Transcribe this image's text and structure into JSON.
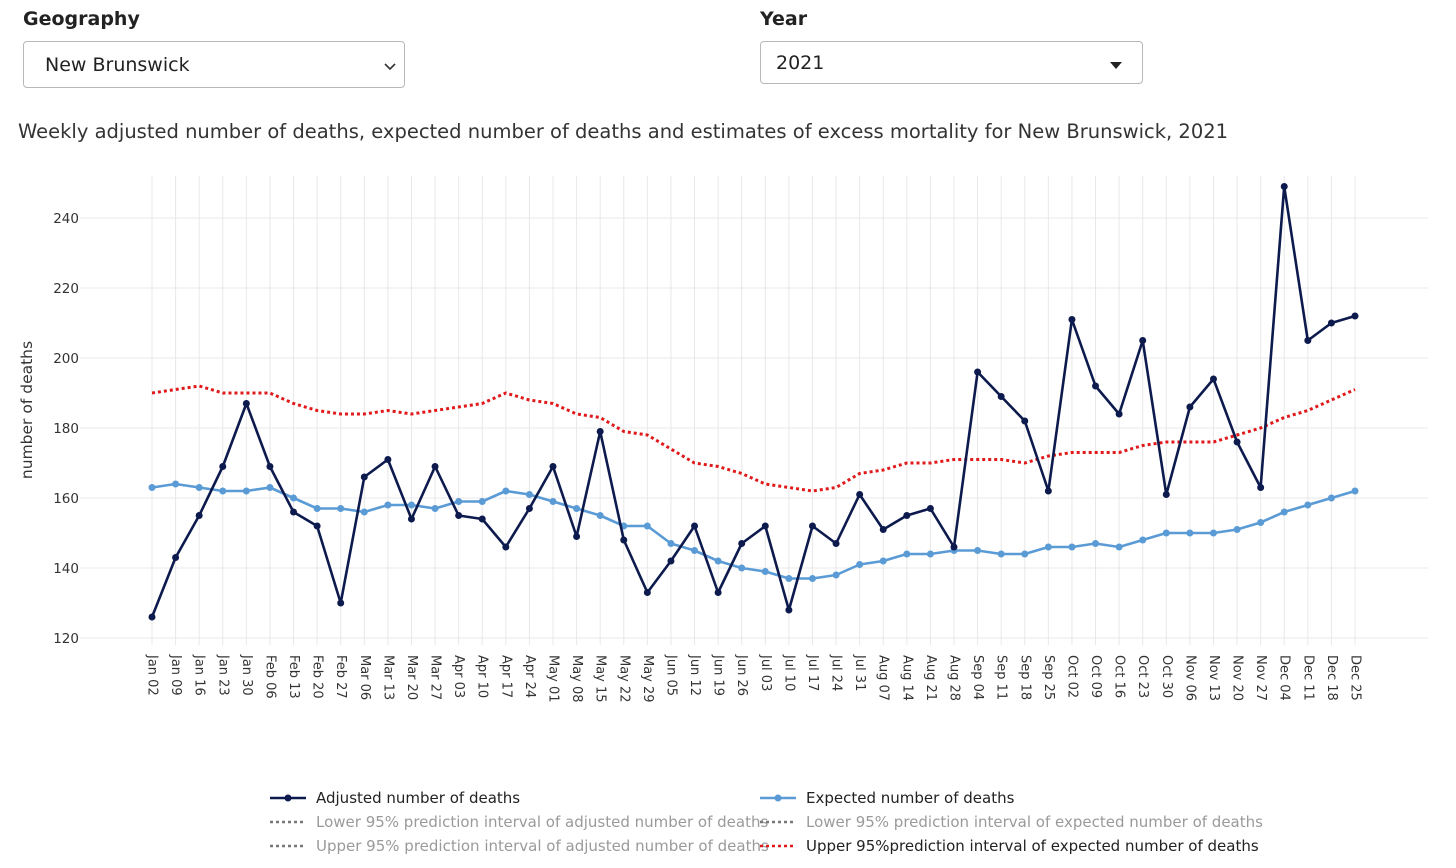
{
  "filters": {
    "geography": {
      "label": "Geography",
      "value": "New Brunswick"
    },
    "year": {
      "label": "Year",
      "value": "2021"
    }
  },
  "colors": {
    "adjusted": "#0d1a4d",
    "expected": "#5b9bd5",
    "upper_expected": "#e0191b",
    "interval_gray": "#777777",
    "grid": "#e8e8e8"
  },
  "icons": {
    "geography_dropdown": "chevron-down-icon",
    "year_dropdown": "caret-down-icon"
  },
  "chart_data": {
    "type": "line",
    "title": "Weekly adjusted number of deaths, expected number of deaths and estimates of excess mortality for New Brunswick, 2021",
    "xlabel": "",
    "ylabel": "number of deaths",
    "ylim": [
      118,
      252
    ],
    "yticks": [
      120,
      140,
      160,
      180,
      200,
      220,
      240
    ],
    "grid": true,
    "legend_position": "bottom",
    "categories": [
      "Jan 02",
      "Jan 09",
      "Jan 16",
      "Jan 23",
      "Jan 30",
      "Feb 06",
      "Feb 13",
      "Feb 20",
      "Feb 27",
      "Mar 06",
      "Mar 13",
      "Mar 20",
      "Mar 27",
      "Apr 03",
      "Apr 10",
      "Apr 17",
      "Apr 24",
      "May 01",
      "May 08",
      "May 15",
      "May 22",
      "May 29",
      "Jun 05",
      "Jun 12",
      "Jun 19",
      "Jun 26",
      "Jul 03",
      "Jul 10",
      "Jul 17",
      "Jul 24",
      "Jul 31",
      "Aug 07",
      "Aug 14",
      "Aug 21",
      "Aug 28",
      "Sep 04",
      "Sep 11",
      "Sep 18",
      "Sep 25",
      "Oct 02",
      "Oct 09",
      "Oct 16",
      "Oct 23",
      "Oct 30",
      "Nov 06",
      "Nov 13",
      "Nov 20",
      "Nov 27",
      "Dec 04",
      "Dec 11",
      "Dec 18",
      "Dec 25"
    ],
    "series": [
      {
        "name": "Adjusted number of deaths",
        "values": [
          126,
          143,
          155,
          169,
          187,
          169,
          156,
          152,
          130,
          166,
          171,
          154,
          169,
          155,
          154,
          146,
          157,
          169,
          149,
          179,
          148,
          133,
          142,
          152,
          133,
          147,
          152,
          128,
          152,
          147,
          161,
          151,
          155,
          157,
          146,
          196,
          189,
          182,
          162,
          211,
          192,
          184,
          205,
          161,
          186,
          194,
          176,
          163,
          249,
          205,
          210,
          212
        ]
      },
      {
        "name": "Expected number of deaths",
        "values": [
          163,
          164,
          163,
          162,
          162,
          163,
          160,
          157,
          157,
          156,
          158,
          158,
          157,
          159,
          159,
          162,
          161,
          159,
          157,
          155,
          152,
          152,
          147,
          145,
          142,
          140,
          139,
          137,
          137,
          138,
          141,
          142,
          144,
          144,
          145,
          145,
          144,
          144,
          146,
          146,
          147,
          146,
          148,
          150,
          150,
          150,
          151,
          153,
          156,
          158,
          160,
          162
        ]
      },
      {
        "name": "Upper 95%prediction interval of expected number of deaths",
        "values": [
          190,
          191,
          192,
          190,
          190,
          190,
          187,
          185,
          184,
          184,
          185,
          184,
          185,
          186,
          187,
          190,
          188,
          187,
          184,
          183,
          179,
          178,
          174,
          170,
          169,
          167,
          164,
          163,
          162,
          163,
          167,
          168,
          170,
          170,
          171,
          171,
          171,
          170,
          172,
          173,
          173,
          173,
          175,
          176,
          176,
          176,
          178,
          180,
          183,
          185,
          188,
          191
        ]
      }
    ]
  },
  "legend": {
    "adjusted": "Adjusted number of deaths",
    "expected": "Expected number of deaths",
    "lower_adjusted": "Lower 95% prediction interval of adjusted number of deaths",
    "lower_expected": "Lower 95% prediction interval of expected number of deaths",
    "upper_adjusted": "Upper 95% prediction interval of adjusted number of deaths",
    "upper_expected": "Upper 95%prediction interval of expected number of deaths"
  }
}
